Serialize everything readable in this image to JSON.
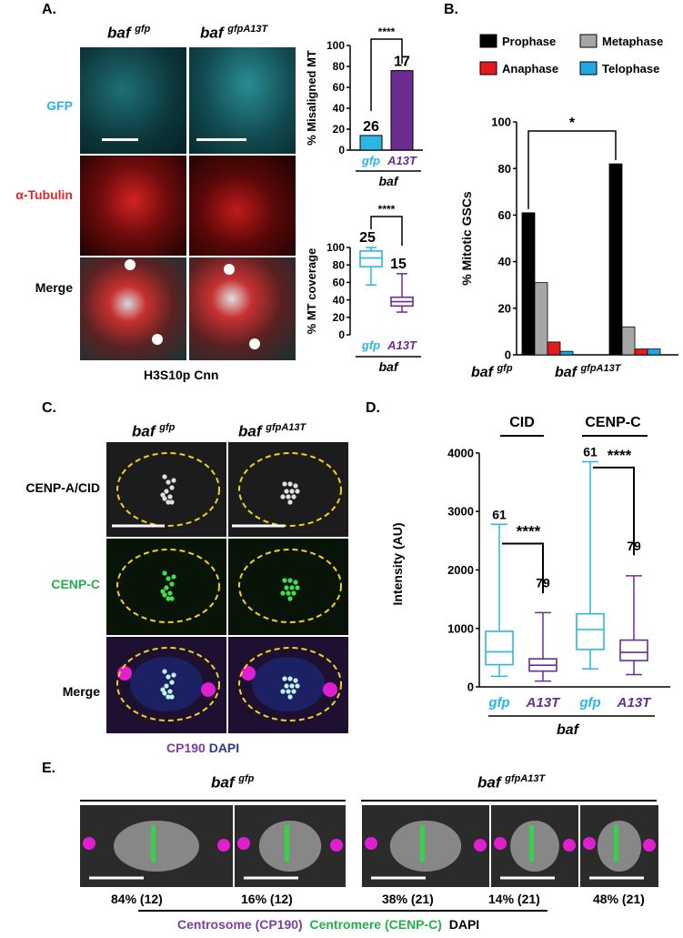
{
  "panelA": {
    "letter": "A.",
    "genotypes": [
      {
        "base": "baf",
        "sup": "gfp"
      },
      {
        "base": "baf",
        "sup": "gfpA13T"
      }
    ],
    "rows": [
      "GFP",
      "α-Tubulin",
      "Merge"
    ],
    "caption": "H3S10p Cnn",
    "colors": {
      "gfp_label": "#2ab7e4",
      "tubulin_label": "#e4262b",
      "merge_label": "#000000"
    }
  },
  "panelB": {
    "letter": "B.",
    "legend": [
      "Prophase",
      "Metaphase",
      "Anaphase",
      "Telophase"
    ]
  },
  "panelC": {
    "letter": "C.",
    "genotypes": [
      {
        "base": "baf",
        "sup": "gfp"
      },
      {
        "base": "baf",
        "sup": "gfpA13T"
      }
    ],
    "rows": [
      "CENP-A/CID",
      "CENP-C",
      "Merge"
    ],
    "caption_a": "CP190",
    "caption_b": "DAPI",
    "colors": {
      "cenpc_label": "#22b04b",
      "cp190": "#7b3f9e",
      "dapi": "#2b3a8f"
    }
  },
  "panelD": {
    "letter": "D."
  },
  "panelE": {
    "letter": "E.",
    "genotypes": [
      {
        "base": "baf",
        "sup": "gfp"
      },
      {
        "base": "baf",
        "sup": "gfpA13T"
      }
    ],
    "percents": [
      "84% (12)",
      "16% (12)",
      "38% (21)",
      "14% (21)",
      "48% (21)"
    ],
    "legend": {
      "centrosome": "Centrosome (CP190)",
      "centromere": "Centromere (CENP-C)",
      "dapi": "DAPI"
    },
    "colors": {
      "centrosome": "#7b3f9e",
      "centromere": "#22b04b",
      "dapi": "#000000"
    }
  },
  "chart_data": [
    {
      "id": "A-misaligned",
      "type": "bar",
      "categories": [
        "gfp",
        "A13T"
      ],
      "group_label": "baf",
      "values": [
        14,
        76
      ],
      "n": [
        "26",
        "17"
      ],
      "colors": [
        "#2ab7e4",
        "#6b2c91"
      ],
      "ylabel": "% Misaligned MT",
      "ylim": [
        0,
        100
      ],
      "yticks": [
        0,
        20,
        40,
        60,
        80,
        100
      ],
      "significance": "****"
    },
    {
      "id": "A-coverage",
      "type": "box",
      "categories": [
        "gfp",
        "A13T"
      ],
      "group_label": "baf",
      "boxes": [
        {
          "min": 57,
          "q1": 78,
          "median": 88,
          "q3": 96,
          "max": 100
        },
        {
          "min": 26,
          "q1": 33,
          "median": 38,
          "q3": 43,
          "max": 70
        }
      ],
      "n": [
        "25",
        "15"
      ],
      "colors": [
        "#2ab7e4",
        "#6b2c91"
      ],
      "ylabel": "% MT coverage",
      "ylim": [
        0,
        100
      ],
      "yticks": [
        0,
        20,
        40,
        60,
        80,
        100
      ],
      "significance": "****"
    },
    {
      "id": "B-phases",
      "type": "bar",
      "categories": [
        {
          "base": "baf",
          "sup": "gfp"
        },
        {
          "base": "baf",
          "sup": "gfpA13T"
        }
      ],
      "series": [
        {
          "name": "Prophase",
          "color": "#000000",
          "values": [
            61,
            82
          ]
        },
        {
          "name": "Metaphase",
          "color": "#a6a6a6",
          "values": [
            31,
            12
          ]
        },
        {
          "name": "Anaphase",
          "color": "#e41a1c",
          "values": [
            5.5,
            2.5
          ]
        },
        {
          "name": "Telophase",
          "color": "#1fa9e1",
          "values": [
            1.5,
            2.5
          ]
        }
      ],
      "ylabel": "% Mitotic GSCs",
      "ylim": [
        0,
        100
      ],
      "yticks": [
        0,
        20,
        40,
        60,
        80,
        100
      ],
      "significance": "*",
      "legend": "top"
    },
    {
      "id": "D-intensity",
      "type": "box",
      "categories": [
        "gfp",
        "A13T",
        "gfp",
        "A13T"
      ],
      "groups": [
        "CID",
        "CENP-C"
      ],
      "group_label": "baf",
      "boxes": [
        {
          "min": 180,
          "q1": 380,
          "median": 600,
          "q3": 950,
          "max": 2780
        },
        {
          "min": 100,
          "q1": 270,
          "median": 370,
          "q3": 480,
          "max": 1270
        },
        {
          "min": 310,
          "q1": 640,
          "median": 980,
          "q3": 1250,
          "max": 3850
        },
        {
          "min": 210,
          "q1": 450,
          "median": 590,
          "q3": 800,
          "max": 1900
        }
      ],
      "n": [
        "61",
        "79",
        "61",
        "79"
      ],
      "colors": [
        "#2ab7e4",
        "#6b2c91",
        "#2ab7e4",
        "#6b2c91"
      ],
      "ylabel": "Intensity (AU)",
      "ylim": [
        0,
        4200
      ],
      "yticks": [
        0,
        1000,
        2000,
        3000,
        4000
      ],
      "significance": [
        "****",
        "****"
      ]
    }
  ]
}
